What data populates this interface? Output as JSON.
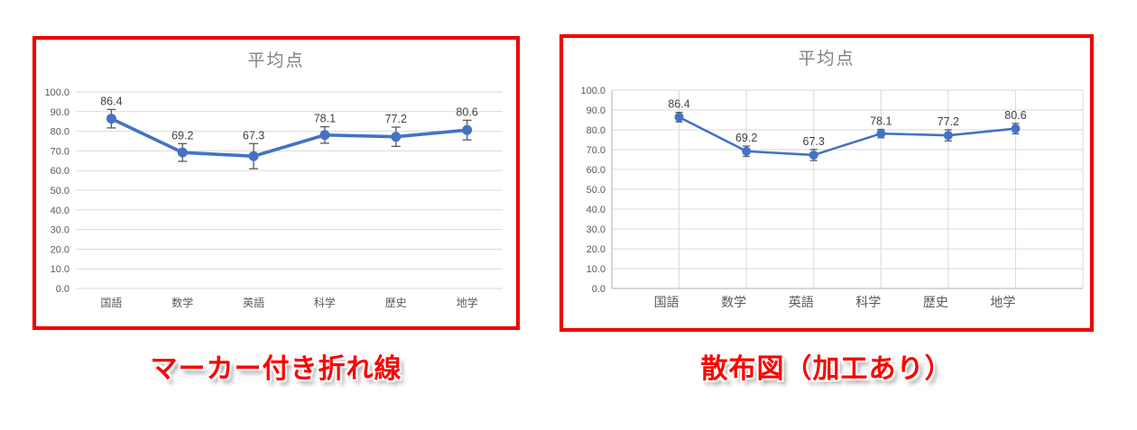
{
  "page": {
    "background": "#ffffff"
  },
  "colors": {
    "series_line": "#4472C4",
    "marker_fill": "#4472C4",
    "error_bar": "#595959",
    "gridline": "#D9D9D9",
    "axis_line": "#BFBFBF",
    "axis_text": "#595959",
    "data_label_text": "#404040",
    "title_text": "#808080",
    "frame_border": "#EE0000",
    "caption_text": "#FF0000"
  },
  "chart_data": [
    {
      "type": "line",
      "title": "平均点",
      "caption": "マーカー付き折れ線",
      "categories": [
        "国語",
        "数学",
        "英語",
        "科学",
        "歴史",
        "地学"
      ],
      "values": [
        86.4,
        69.2,
        67.3,
        78.1,
        77.2,
        80.6
      ],
      "data_labels": [
        "86.4",
        "69.2",
        "67.3",
        "78.1",
        "77.2",
        "80.6"
      ],
      "errors": [
        4.7,
        4.5,
        6.4,
        4.2,
        4.9,
        5.0
      ],
      "ylim": [
        0,
        100
      ],
      "ytick_step": 10,
      "ytick_labels": [
        "0.0",
        "10.0",
        "20.0",
        "30.0",
        "40.0",
        "50.0",
        "60.0",
        "70.0",
        "80.0",
        "90.0",
        "100.0"
      ],
      "grid": {
        "horizontal": true,
        "vertical": false
      },
      "legend": "none",
      "markers": true
    },
    {
      "type": "scatter",
      "title": "平均点",
      "caption": "散布図（加工あり）",
      "categories": [
        "国語",
        "数学",
        "英語",
        "科学",
        "歴史",
        "地学"
      ],
      "values": [
        86.4,
        69.2,
        67.3,
        78.1,
        77.2,
        80.6
      ],
      "data_labels": [
        "86.4",
        "69.2",
        "67.3",
        "78.1",
        "77.2",
        "80.6"
      ],
      "errors": [
        2.4,
        2.6,
        2.8,
        2.1,
        2.8,
        2.6
      ],
      "ylim": [
        0,
        100
      ],
      "ytick_step": 10,
      "ytick_labels": [
        "0.0",
        "10.0",
        "20.0",
        "30.0",
        "40.0",
        "50.0",
        "60.0",
        "70.0",
        "80.0",
        "90.0",
        "100.0"
      ],
      "grid": {
        "horizontal": true,
        "vertical": true
      },
      "legend": "none",
      "markers": true
    }
  ]
}
